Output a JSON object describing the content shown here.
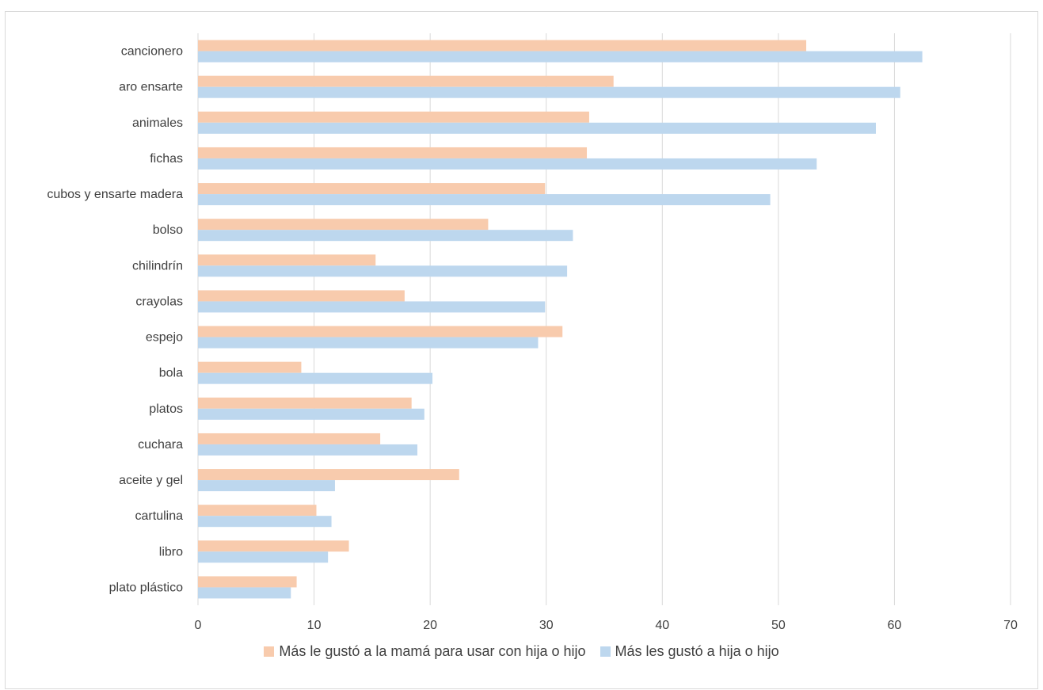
{
  "chart_data": {
    "type": "bar",
    "orientation": "horizontal",
    "categories": [
      "cancionero",
      "aro ensarte",
      "animales",
      "fichas",
      "cubos y ensarte madera",
      "bolso",
      "chilindrín",
      "crayolas",
      "espejo",
      "bola",
      "platos",
      "cuchara",
      "aceite y gel",
      "cartulina",
      "libro",
      "plato plástico"
    ],
    "series": [
      {
        "name": "Más le gustó a la mamá para usar con hija o hijo",
        "color": "#f8cbad",
        "values": [
          52.4,
          35.8,
          33.7,
          33.5,
          29.9,
          25.0,
          15.3,
          17.8,
          31.4,
          8.9,
          18.4,
          15.7,
          22.5,
          10.2,
          13.0,
          8.5
        ]
      },
      {
        "name": "Más les gustó a hija o hijo",
        "color": "#bdd7ee",
        "values": [
          62.4,
          60.5,
          58.4,
          53.3,
          49.3,
          32.3,
          31.8,
          29.9,
          29.3,
          20.2,
          19.5,
          18.9,
          11.8,
          11.5,
          11.2,
          8.0
        ]
      }
    ],
    "xlim": [
      0,
      70
    ],
    "ticks": [
      "0",
      "10",
      "20",
      "30",
      "40",
      "50",
      "60",
      "70"
    ],
    "grid": true,
    "legend_position": "bottom",
    "title": "",
    "xlabel": "",
    "ylabel": ""
  }
}
